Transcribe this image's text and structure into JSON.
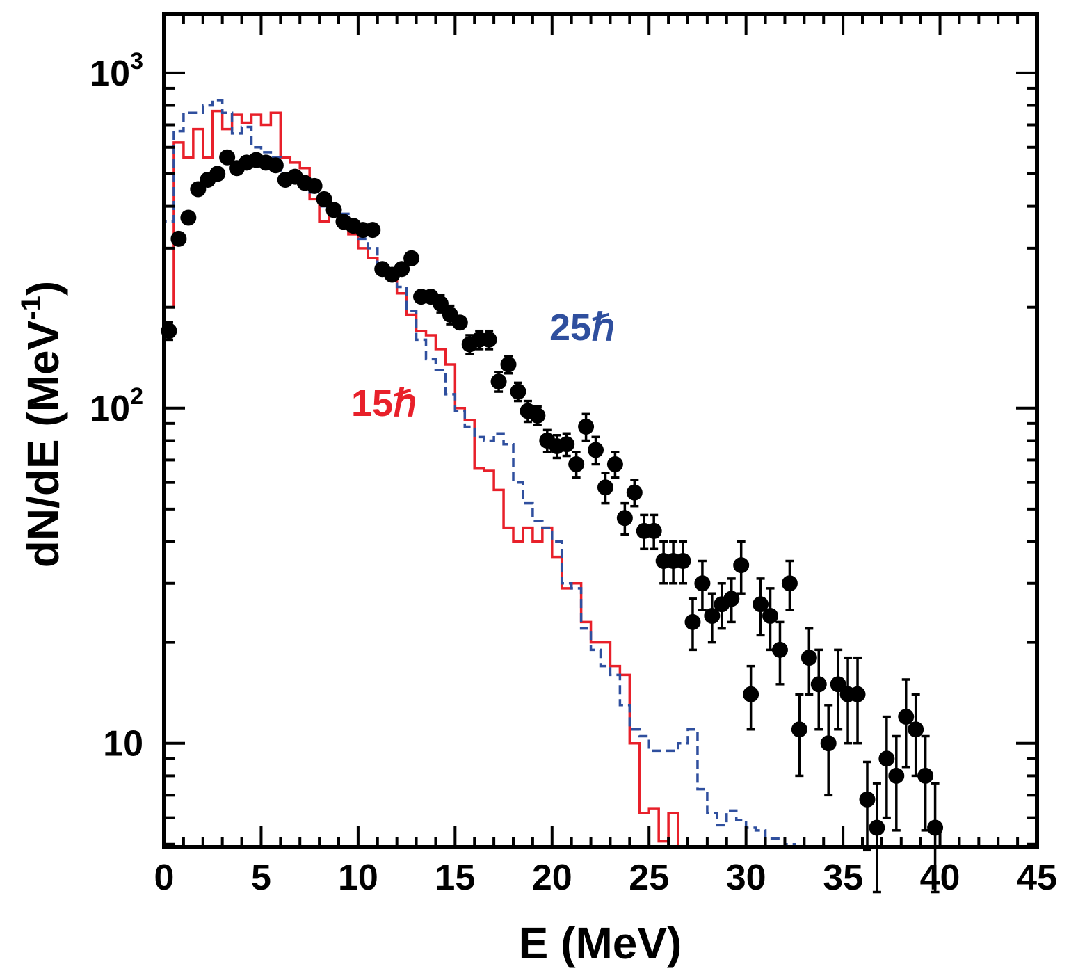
{
  "chart_data": {
    "type": "scatter",
    "title": "",
    "xlabel": "E  (MeV)",
    "ylabel": "dN/dE (MeV",
    "ylabel_sup": "-1",
    "ylabel_close": ")",
    "xlim": [
      0,
      45
    ],
    "ylim": [
      4.9,
      1500
    ],
    "yscale": "log",
    "x_ticks": [
      0,
      5,
      10,
      15,
      20,
      25,
      30,
      35,
      40,
      45
    ],
    "x_tick_labels": [
      "0",
      "5",
      "10",
      "15",
      "20",
      "25",
      "30",
      "35",
      "40",
      "45"
    ],
    "y_ticks": [
      {
        "value": 1000,
        "base": "10",
        "sup": "3"
      },
      {
        "value": 100,
        "base": "10",
        "sup": "2"
      },
      {
        "value": 10,
        "base": "10",
        "sup": ""
      }
    ],
    "colors": {
      "data": "#000000",
      "s15": "#e8202a",
      "s25": "#2f4f9e"
    },
    "annotations": [
      {
        "text": "15ℏ",
        "series": "15ℏ",
        "x": 20.5,
        "y": 86
      },
      {
        "text": "25ℏ",
        "series": "25ℏ",
        "x": 21.0,
        "y": 135
      }
    ],
    "series": [
      {
        "name": "data",
        "kind": "points_with_errors",
        "x": [
          0.25,
          0.75,
          1.25,
          1.75,
          2.25,
          2.75,
          3.25,
          3.75,
          4.25,
          4.75,
          5.25,
          5.75,
          6.25,
          6.75,
          7.25,
          7.75,
          8.25,
          8.75,
          9.25,
          9.75,
          10.25,
          10.75,
          11.25,
          11.75,
          12.25,
          12.75,
          13.25,
          13.75,
          14.25,
          14.75,
          15.25,
          15.75,
          16.25,
          16.75,
          17.25,
          17.75,
          18.25,
          18.75,
          19.25,
          19.75,
          20.25,
          20.75,
          21.25,
          21.75,
          22.25,
          22.75,
          23.25,
          23.75,
          24.25,
          24.75,
          25.25,
          25.75,
          26.25,
          26.75,
          27.25,
          27.75,
          28.25,
          28.75,
          29.25,
          29.75,
          30.25,
          30.75,
          31.25,
          31.75,
          32.25,
          32.75,
          33.25,
          33.75,
          34.25,
          34.75,
          35.25,
          35.75,
          36.25,
          36.75,
          37.25,
          37.75,
          38.25,
          38.75,
          39.25,
          39.75
        ],
        "y": [
          170,
          320,
          370,
          450,
          480,
          500,
          560,
          520,
          540,
          550,
          540,
          530,
          480,
          490,
          470,
          460,
          420,
          390,
          360,
          350,
          340,
          340,
          260,
          250,
          260,
          280,
          215,
          215,
          205,
          190,
          180,
          155,
          160,
          160,
          120,
          135,
          112,
          98,
          95,
          80,
          77,
          78,
          68,
          88,
          75,
          58,
          68,
          47,
          56,
          43,
          43,
          35,
          35,
          35,
          23,
          30,
          24,
          26,
          27,
          34,
          14,
          26,
          24,
          19,
          30,
          11,
          18,
          15,
          10,
          15,
          14,
          14,
          6.8,
          5.6,
          9,
          8,
          12,
          11,
          8,
          5.6
        ],
        "err": [
          10,
          10,
          10,
          10,
          10,
          10,
          10,
          10,
          10,
          10,
          10,
          10,
          10,
          10,
          10,
          10,
          10,
          10,
          10,
          10,
          10,
          10,
          8,
          8,
          8,
          8,
          12,
          12,
          12,
          12,
          10,
          10,
          10,
          10,
          8,
          8,
          7,
          7,
          6,
          6,
          6,
          6,
          6,
          8,
          7,
          6,
          6,
          5,
          5,
          5,
          5,
          5,
          5,
          5,
          4,
          5,
          4,
          4,
          4,
          6,
          3,
          5,
          5,
          4,
          5,
          3,
          4,
          4,
          3,
          4,
          4,
          4,
          2,
          2,
          3,
          2.5,
          3.5,
          3,
          2.5,
          2
        ]
      },
      {
        "name": "15ℏ",
        "kind": "step",
        "style": "solid",
        "edges": [
          0,
          0.5,
          1,
          1.5,
          2,
          2.5,
          3,
          3.5,
          4,
          4.5,
          5,
          5.5,
          6,
          6.5,
          7,
          7.5,
          8,
          8.5,
          9,
          9.5,
          10,
          10.5,
          11,
          11.5,
          12,
          12.5,
          13,
          13.5,
          14,
          14.5,
          15,
          15.5,
          16,
          16.5,
          17,
          17.5,
          18,
          18.5,
          19,
          19.5,
          20,
          20.5,
          21,
          21.5,
          22,
          22.5,
          23,
          23.5,
          24,
          24.5,
          25,
          25.5,
          26,
          26.5,
          27,
          27.5,
          28
        ],
        "values": [
          200,
          620,
          560,
          680,
          560,
          770,
          680,
          750,
          710,
          750,
          700,
          760,
          560,
          540,
          520,
          420,
          360,
          380,
          360,
          330,
          300,
          280,
          255,
          250,
          220,
          190,
          170,
          165,
          150,
          135,
          100,
          92,
          66,
          65,
          57,
          44,
          40,
          44,
          40,
          44,
          36,
          29,
          30,
          23,
          20,
          20,
          17,
          16,
          10,
          6.2,
          6.4,
          5.1,
          6.2,
          4.5,
          4.5,
          5.1
        ],
        "end": 27.5
      },
      {
        "name": "25ℏ",
        "kind": "step",
        "style": "dashed",
        "edges": [
          0,
          0.5,
          1,
          1.5,
          2,
          2.5,
          3,
          3.5,
          4,
          4.5,
          5,
          5.5,
          6,
          6.5,
          7,
          7.5,
          8,
          8.5,
          9,
          9.5,
          10,
          10.5,
          11,
          11.5,
          12,
          12.5,
          13,
          13.5,
          14,
          14.5,
          15,
          15.5,
          16,
          16.5,
          17,
          17.5,
          18,
          18.5,
          19,
          19.5,
          20,
          20.5,
          21,
          21.5,
          22,
          22.5,
          23,
          23.5,
          24,
          24.5,
          25,
          25.5,
          26,
          26.5,
          27,
          27.5,
          28,
          28.5,
          29,
          29.5,
          30,
          30.5,
          31,
          31.5,
          32,
          32.5,
          33
        ],
        "values": [
          360,
          670,
          760,
          760,
          800,
          830,
          760,
          660,
          690,
          600,
          580,
          560,
          490,
          490,
          470,
          440,
          400,
          400,
          380,
          340,
          320,
          300,
          260,
          250,
          230,
          195,
          160,
          140,
          130,
          110,
          98,
          88,
          82,
          80,
          84,
          78,
          60,
          52,
          46,
          44,
          40,
          30,
          29,
          22,
          19,
          17,
          16,
          13,
          11,
          10.5,
          9.5,
          9.5,
          9.5,
          10,
          11,
          7.3,
          6.2,
          5.7,
          6.3,
          5.9,
          5.6,
          5.5,
          5.2,
          5.2,
          5.0,
          4.8
        ],
        "end": 33.2
      }
    ]
  }
}
